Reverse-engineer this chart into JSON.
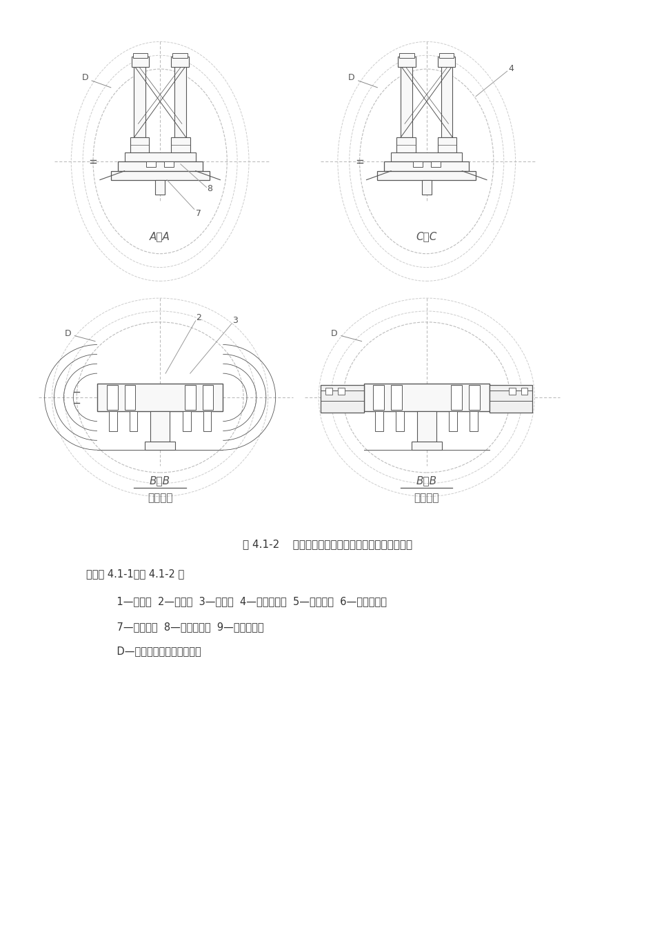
{
  "bg_color": "#ffffff",
  "line_color": "#555555",
  "dashed_color": "#aaaaaa",
  "text_color": "#333333",
  "figure_caption": "图 4.1-2    针梁式全圆钢模衬砌台车脱模、衬砌状态图",
  "note_line1": "注：图 4.1-1、图 4.1-2 中",
  "note_line2": "    1—针梁；  2—模板；  3—门架；  4—脱模油缸；  5—卷扬机；  6—举升油缸；",
  "note_line3": "    7—平移架；  8—平移油缸；  9—抗浮机构；",
  "note_line4": "    D—隧洞断面直径（钢模板）",
  "label_AA": "A－A",
  "label_CC": "C－C",
  "label_BB1": "B－B",
  "label_BB2": "B－B",
  "label_demold": "脱模状态",
  "label_lining": "衬砌状态"
}
